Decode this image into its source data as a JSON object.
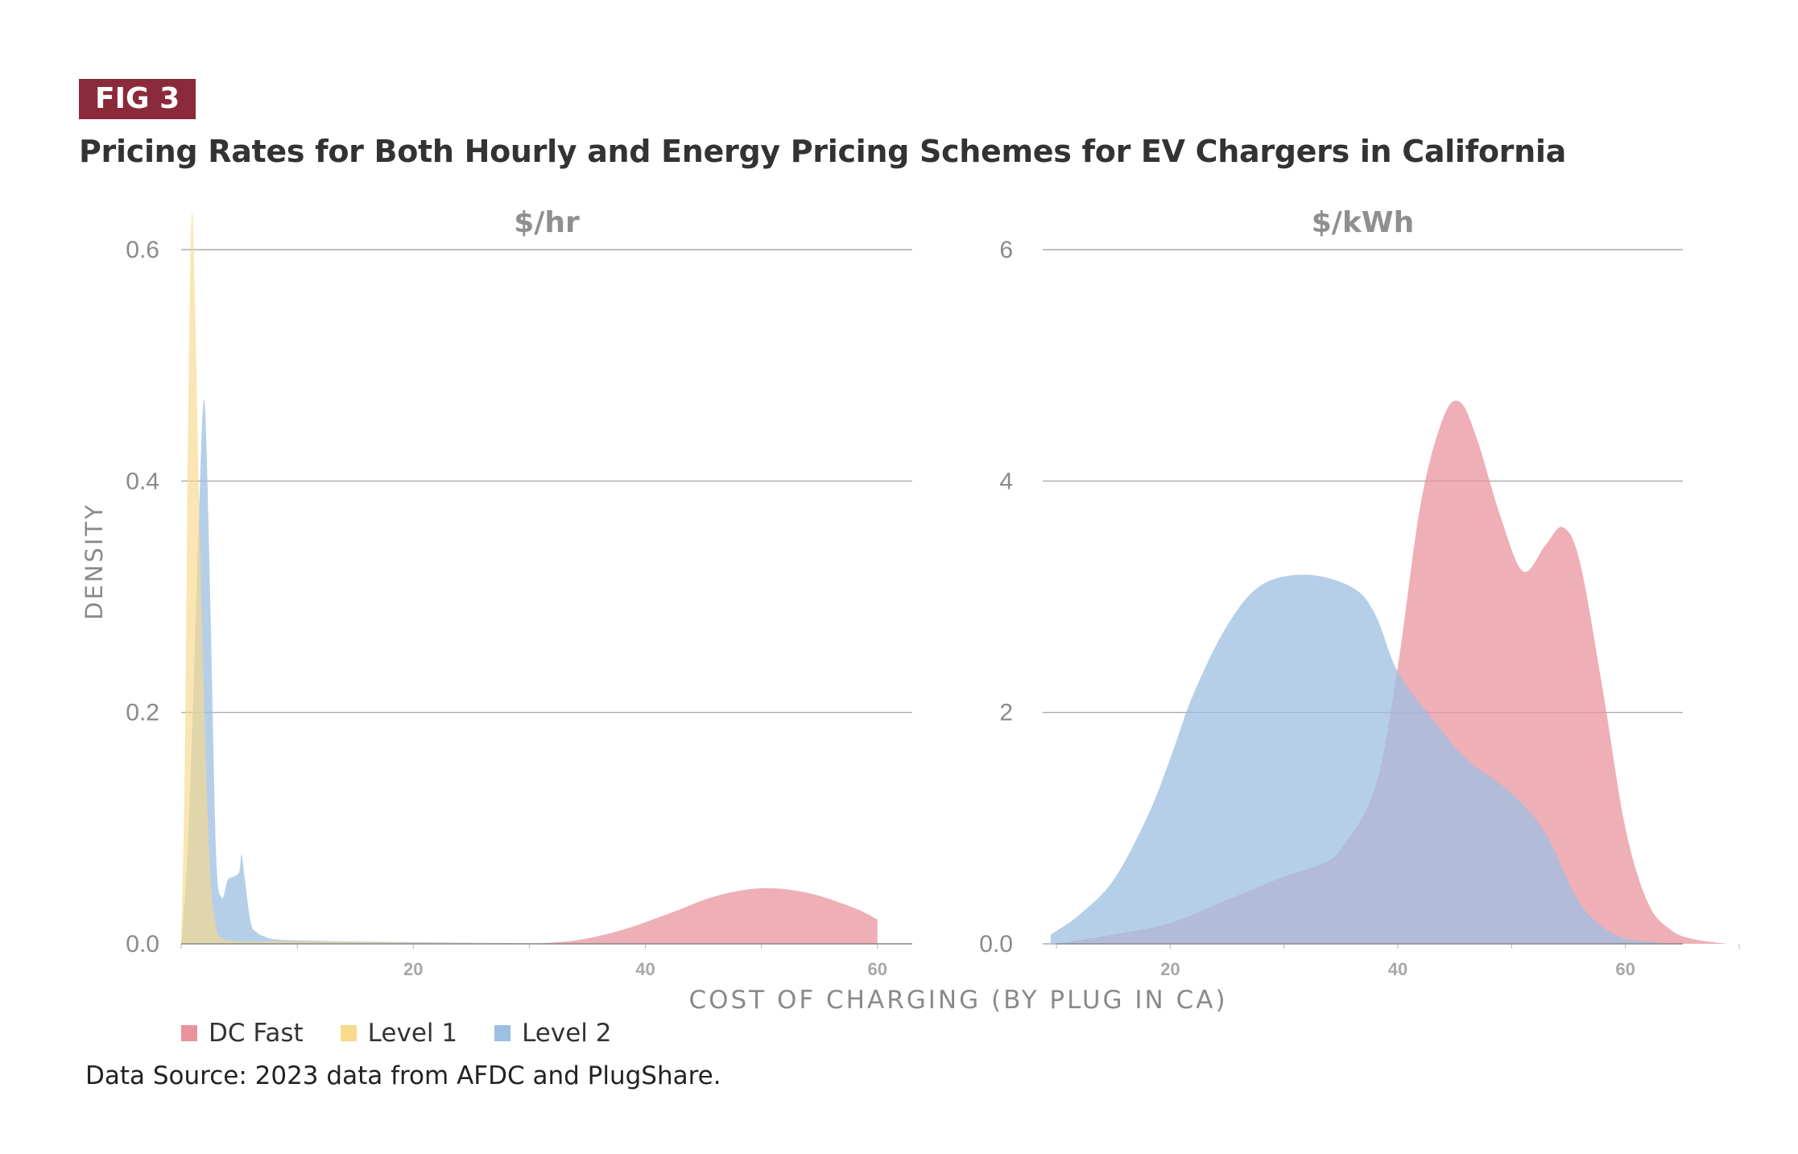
{
  "header": {
    "badge": "FIG 3",
    "title": "Pricing Rates for Both Hourly and Energy Pricing Schemes for EV Chargers in California"
  },
  "footer": {
    "source": "Data Source: 2023 data from AFDC and PlugShare."
  },
  "colors": {
    "dc_fast": "#e8949f",
    "level1": "#f9d98a",
    "level2": "#9dbfe2",
    "badge": "#8b2a3b",
    "axis_text": "#8a8a8a"
  },
  "chart_data": {
    "type": "area",
    "ylabel": "DENSITY",
    "xlabel": "COST OF CHARGING (BY PLUG IN CA)",
    "legend": [
      "DC Fast",
      "Level 1",
      "Level 2"
    ],
    "legend_placement": "bottom-left",
    "grid": true,
    "panels": [
      {
        "title": "$/hr",
        "xlim": [
          0,
          63
        ],
        "ylim": [
          0,
          0.6
        ],
        "xticks": [
          20,
          40,
          60
        ],
        "yticks": [
          0.0,
          0.2,
          0.4,
          0.6
        ],
        "series": [
          {
            "name": "DC Fast",
            "x": [
              30,
              34,
              38,
              42,
              46,
              50,
              54,
              58,
              60
            ],
            "y": [
              0.0,
              0.003,
              0.012,
              0.026,
              0.041,
              0.048,
              0.044,
              0.031,
              0.021
            ]
          },
          {
            "name": "Level 2",
            "x": [
              0,
              0.5,
              1,
              1.5,
              2,
              2.5,
              3,
              3.5,
              4,
              4.5,
              5,
              5.2,
              5.5,
              6,
              6.5,
              7,
              8,
              10,
              15,
              30
            ],
            "y": [
              0,
              0.07,
              0.2,
              0.36,
              0.47,
              0.3,
              0.08,
              0.04,
              0.055,
              0.058,
              0.062,
              0.077,
              0.055,
              0.018,
              0.01,
              0.007,
              0.004,
              0.003,
              0.002,
              0.0005
            ]
          },
          {
            "name": "Level 1",
            "x": [
              0,
              0.3,
              0.6,
              0.9,
              1.2,
              1.5,
              2,
              2.5,
              3,
              3.5,
              5,
              10,
              20,
              30
            ],
            "y": [
              0,
              0.15,
              0.45,
              0.63,
              0.55,
              0.4,
              0.2,
              0.06,
              0.015,
              0.005,
              0.002,
              0.002,
              0.001,
              0.0005
            ]
          }
        ]
      },
      {
        "title": "$/kWh",
        "xlim": [
          10,
          70
        ],
        "ylim": [
          0,
          6
        ],
        "xticks": [
          20,
          40,
          60
        ],
        "yticks": [
          0.0,
          2,
          4,
          6
        ],
        "series": [
          {
            "name": "DC Fast",
            "x": [
              10,
              15,
              20,
              25,
              30,
              33,
              35,
              38,
              40,
              42,
              44,
              45.5,
              47,
              49,
              51,
              53,
              54.5,
              56,
              58,
              60,
              62,
              64,
              66,
              69
            ],
            "y": [
              0.0,
              0.08,
              0.18,
              0.38,
              0.58,
              0.68,
              0.82,
              1.35,
              2.4,
              3.8,
              4.55,
              4.68,
              4.35,
              3.7,
              3.22,
              3.45,
              3.6,
              3.3,
              2.2,
              1.0,
              0.35,
              0.12,
              0.04,
              0.0
            ]
          },
          {
            "name": "Level 2",
            "x": [
              9.5,
              12,
              15,
              18,
              20,
              22,
              25,
              28,
              32,
              36,
              38,
              40,
              43,
              46,
              50,
              53,
              56,
              59,
              62,
              65
            ],
            "y": [
              0.08,
              0.25,
              0.55,
              1.1,
              1.6,
              2.15,
              2.75,
              3.1,
              3.19,
              3.08,
              2.85,
              2.35,
              1.95,
              1.6,
              1.3,
              0.95,
              0.35,
              0.08,
              0.02,
              0.0
            ]
          }
        ]
      }
    ]
  }
}
